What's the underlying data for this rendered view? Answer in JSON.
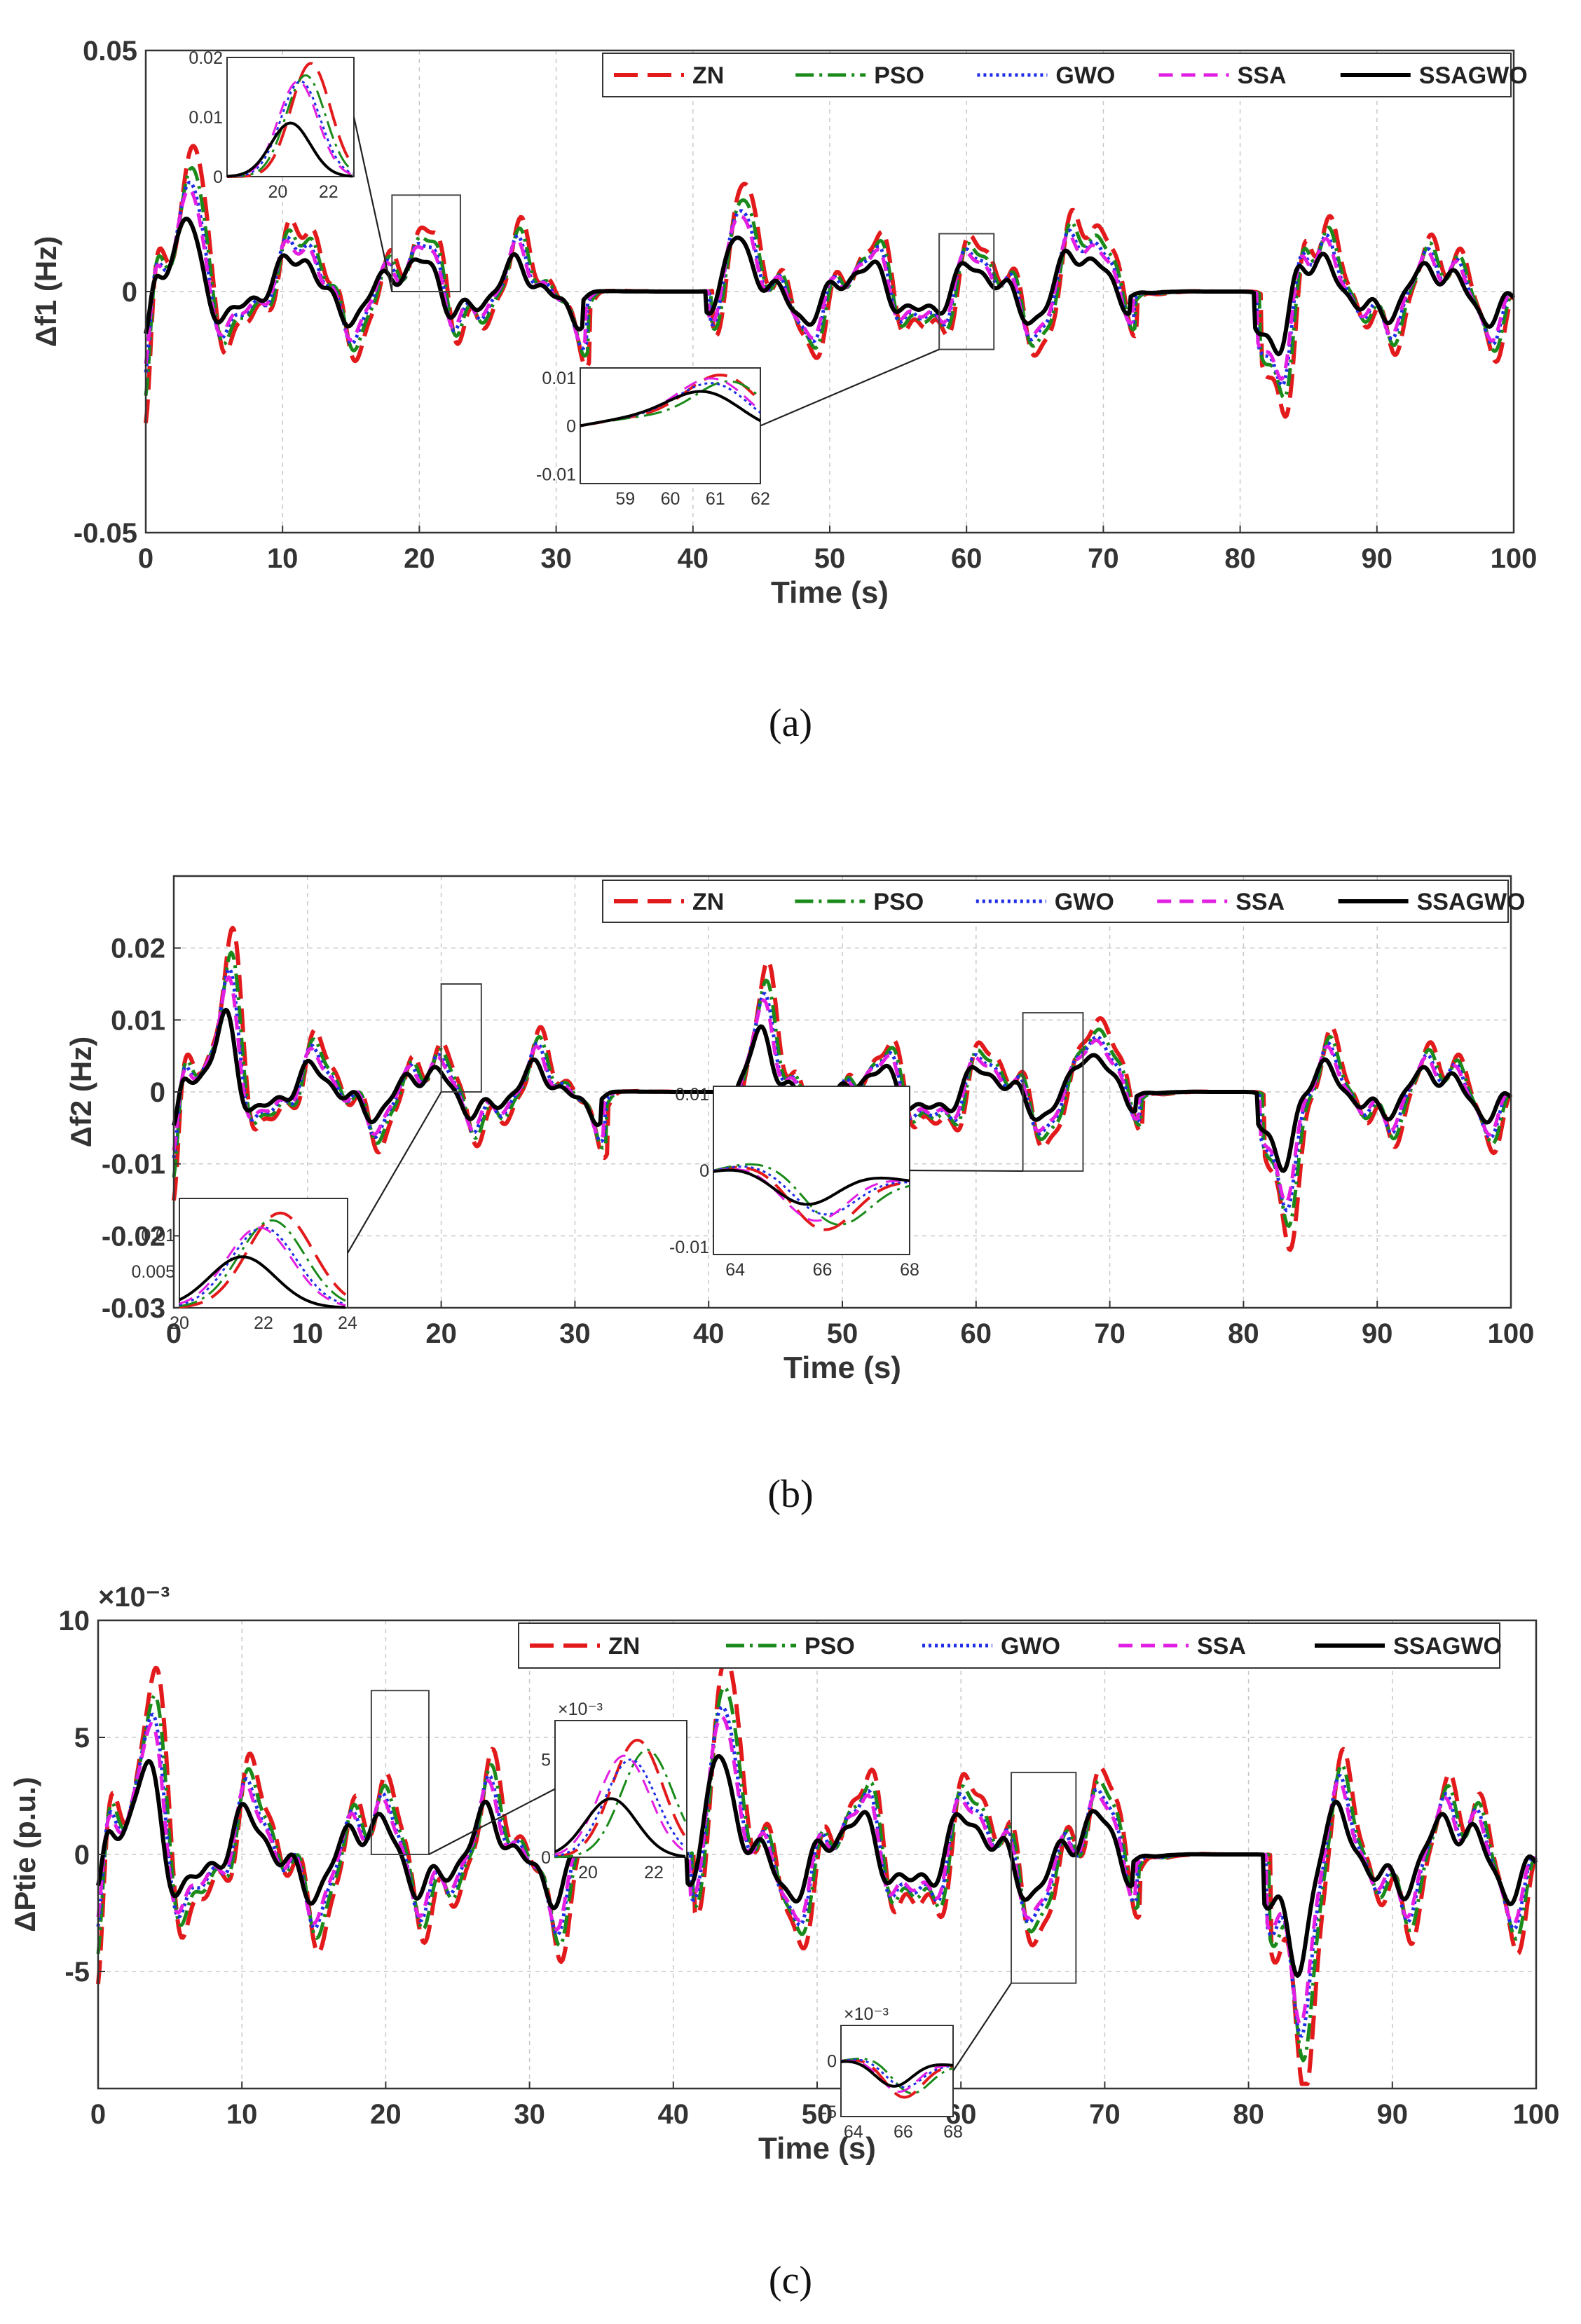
{
  "series_styles": [
    {
      "name": "ZN",
      "color": "#e31a1c",
      "dash": "34 14",
      "width": 6
    },
    {
      "name": "PSO",
      "color": "#1a8a1a",
      "dash": "26 8 4 8",
      "width": 5
    },
    {
      "name": "GWO",
      "color": "#1f2ee6",
      "dash": "4 5",
      "width": 5
    },
    {
      "name": "SSA",
      "color": "#e21ee2",
      "dash": "20 12",
      "width": 5
    },
    {
      "name": "SSAGWO",
      "color": "#000000",
      "dash": "",
      "width": 6
    }
  ],
  "chart_data": [
    {
      "type": "line",
      "id": "a",
      "caption": "(a)",
      "xlabel": "Time (s)",
      "ylabel": "Δf1 (Hz)",
      "exponent_label": "",
      "xlim": [
        0,
        100
      ],
      "ylim": [
        -0.05,
        0.05
      ],
      "xticks": [
        0,
        10,
        20,
        30,
        40,
        50,
        60,
        70,
        80,
        90,
        100
      ],
      "xtick_labels": [
        "0",
        "10",
        "20",
        "30",
        "40",
        "50",
        "60",
        "70",
        "80",
        "90",
        "100"
      ],
      "yticks": [
        -0.05,
        0,
        0.05
      ],
      "ytick_labels": [
        "-0.05",
        "0",
        "0.05"
      ],
      "legend": [
        "ZN",
        "PSO",
        "GWO",
        "SSA",
        "SSAGWO"
      ],
      "legend_position": "top-right",
      "signal": {
        "amp": 0.012,
        "idle": [
          [
            32,
            41
          ],
          [
            72,
            81
          ]
        ],
        "start_dip": -0.022,
        "peaks": [
          [
            3,
            0.03
          ],
          [
            12,
            0.017
          ],
          [
            21,
            0.017
          ],
          [
            43,
            0.02
          ],
          [
            67.5,
            0.022
          ],
          [
            84,
            0.022
          ],
          [
            83,
            -0.02
          ]
        ],
        "gain": {
          "ZN": 1.0,
          "PSO": 0.85,
          "GWO": 0.75,
          "SSA": 0.7,
          "SSAGWO": 0.45
        }
      },
      "insets": [
        {
          "xlim": [
            18,
            23
          ],
          "ylim": [
            0,
            0.02
          ],
          "xticks": [
            20,
            22
          ],
          "xtick_labels": [
            "20",
            "22"
          ],
          "yticks": [
            0,
            0.01,
            0.02
          ],
          "ytick_labels": [
            "0",
            "0.01",
            "0.02"
          ],
          "peaks": {
            "ZN": [
              21.3,
              0.019
            ],
            "PSO": [
              21.1,
              0.017
            ],
            "GWO": [
              20.9,
              0.016
            ],
            "SSA": [
              20.8,
              0.016
            ],
            "SSAGWO": [
              20.5,
              0.009
            ]
          }
        },
        {
          "xlim": [
            58,
            62
          ],
          "ylim": [
            -0.012,
            0.012
          ],
          "xticks": [
            59,
            60,
            61,
            62
          ],
          "xtick_labels": [
            "59",
            "60",
            "61",
            "62"
          ],
          "yticks": [
            -0.01,
            0,
            0.01
          ],
          "ytick_labels": [
            "-0.01",
            "0",
            "0.01"
          ],
          "peaks": {
            "ZN": [
              61.2,
              0.01
            ],
            "PSO": [
              61.4,
              0.009
            ],
            "GWO": [
              61.0,
              0.008
            ],
            "SSA": [
              61.0,
              0.009
            ],
            "SSAGWO": [
              60.8,
              0.006
            ]
          }
        }
      ]
    },
    {
      "type": "line",
      "id": "b",
      "caption": "(b)",
      "xlabel": "Time (s)",
      "ylabel": "Δf2 (Hz)",
      "exponent_label": "",
      "xlim": [
        0,
        100
      ],
      "ylim": [
        -0.03,
        0.03
      ],
      "xticks": [
        0,
        10,
        20,
        30,
        40,
        50,
        60,
        70,
        80,
        90,
        100
      ],
      "xtick_labels": [
        "0",
        "10",
        "20",
        "30",
        "40",
        "50",
        "60",
        "70",
        "80",
        "90",
        "100"
      ],
      "yticks": [
        -0.03,
        -0.02,
        -0.01,
        0,
        0.01,
        0.02
      ],
      "ytick_labels": [
        "-0.03",
        "-0.02",
        "-0.01",
        "0",
        "0.01",
        "0.02"
      ],
      "legend": [
        "ZN",
        "PSO",
        "GWO",
        "SSA",
        "SSAGWO"
      ],
      "legend_position": "top-right",
      "signal": {
        "amp": 0.007,
        "idle": [
          [
            32,
            42
          ],
          [
            72,
            81
          ]
        ],
        "start_dip": -0.012,
        "peaks": [
          [
            4,
            0.023
          ],
          [
            44,
            0.015
          ],
          [
            68,
            0.012
          ],
          [
            83,
            -0.016
          ]
        ],
        "gain": {
          "ZN": 1.0,
          "PSO": 0.85,
          "GWO": 0.75,
          "SSA": 0.7,
          "SSAGWO": 0.45
        }
      },
      "insets": [
        {
          "xlim": [
            20,
            24
          ],
          "ylim": [
            0,
            0.015
          ],
          "xticks": [
            20,
            22,
            24
          ],
          "xtick_labels": [
            "20",
            "22",
            "24"
          ],
          "yticks": [
            0.005,
            0.01
          ],
          "ytick_labels": [
            "0.005",
            "0.01"
          ],
          "peaks": {
            "ZN": [
              22.4,
              0.013
            ],
            "PSO": [
              22.2,
              0.012
            ],
            "GWO": [
              22.0,
              0.011
            ],
            "SSA": [
              21.9,
              0.011
            ],
            "SSAGWO": [
              21.5,
              0.007
            ]
          }
        },
        {
          "xlim": [
            63.5,
            68
          ],
          "ylim": [
            -0.011,
            0.011
          ],
          "xticks": [
            64,
            66,
            68
          ],
          "xtick_labels": [
            "64",
            "66",
            "68"
          ],
          "yticks": [
            -0.01,
            0,
            0.01
          ],
          "ytick_labels": [
            "-0.01",
            "0",
            "0.01"
          ],
          "peaks": {
            "ZN": [
              66.0,
              -0.009
            ],
            "PSO": [
              66.3,
              -0.008
            ],
            "GWO": [
              66.0,
              -0.007
            ],
            "SSA": [
              65.8,
              -0.008
            ],
            "SSAGWO": [
              65.6,
              -0.006
            ]
          }
        }
      ]
    },
    {
      "type": "line",
      "id": "c",
      "caption": "(c)",
      "xlabel": "Time (s)",
      "ylabel": "ΔPtie (p.u.)",
      "exponent_label": "×10⁻³",
      "xlim": [
        0,
        100
      ],
      "ylim": [
        -10,
        10
      ],
      "xticks": [
        0,
        10,
        20,
        30,
        40,
        50,
        60,
        70,
        80,
        90,
        100
      ],
      "xtick_labels": [
        "0",
        "10",
        "20",
        "30",
        "40",
        "50",
        "60",
        "70",
        "80",
        "90",
        "100"
      ],
      "yticks": [
        -5,
        0,
        5,
        10
      ],
      "ytick_labels": [
        "-5",
        "0",
        "5",
        "10"
      ],
      "legend": [
        "ZN",
        "PSO",
        "GWO",
        "SSA",
        "SSAGWO"
      ],
      "legend_position": "top",
      "signal": {
        "amp": 3.5,
        "idle": [
          [
            33,
            41
          ],
          [
            72,
            81
          ]
        ],
        "start_dip": -4,
        "peaks": [
          [
            3.5,
            7.8
          ],
          [
            43,
            7.8
          ],
          [
            83.5,
            -8
          ]
        ],
        "gain": {
          "ZN": 1.0,
          "PSO": 0.85,
          "GWO": 0.75,
          "SSA": 0.7,
          "SSAGWO": 0.45
        }
      },
      "insets": [
        {
          "xlim": [
            19,
            23
          ],
          "ylim": [
            0,
            7
          ],
          "xticks": [
            20,
            22
          ],
          "xtick_labels": [
            "20",
            "22"
          ],
          "yticks": [
            0,
            5
          ],
          "ytick_labels": [
            "0",
            "5"
          ],
          "exponent_label": "×10⁻³",
          "peaks": {
            "ZN": [
              21.5,
              6
            ],
            "PSO": [
              21.8,
              5.5
            ],
            "GWO": [
              21.3,
              5
            ],
            "SSA": [
              21.1,
              5.2
            ],
            "SSAGWO": [
              20.7,
              3
            ]
          }
        },
        {
          "xlim": [
            63.5,
            68
          ],
          "ylim": [
            -5.5,
            3.5
          ],
          "xticks": [
            64,
            66,
            68
          ],
          "xtick_labels": [
            "64",
            "66",
            "68"
          ],
          "yticks": [
            -5,
            0
          ],
          "ytick_labels": [
            "-5",
            "0"
          ],
          "exponent_label": "×10⁻³",
          "peaks": {
            "ZN": [
              66.0,
              -4
            ],
            "PSO": [
              66.3,
              -3.5
            ],
            "GWO": [
              66.0,
              -3
            ],
            "SSA": [
              65.8,
              -3.5
            ],
            "SSAGWO": [
              65.6,
              -3
            ]
          }
        }
      ]
    }
  ]
}
